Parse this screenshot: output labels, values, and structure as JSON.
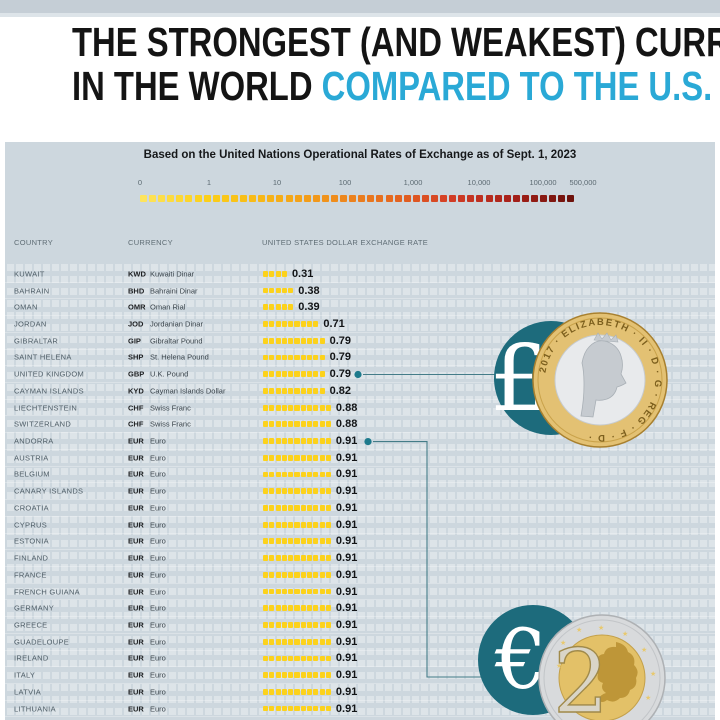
{
  "title": {
    "line1": "THE STRONGEST (AND WEAKEST) CURRENCIES",
    "line2_black": "IN THE WORLD",
    "line2_accent": "COMPARED TO THE U.S. DOLLAR",
    "accent_color": "#2aa9d6"
  },
  "subtitle": "Based on the United Nations Operational Rates of Exchange as of Sept. 1, 2023",
  "legend": {
    "ticks": [
      "0",
      "1",
      "10",
      "100",
      "1,000",
      "10,000",
      "100,000",
      "500,000"
    ],
    "square_count": 48,
    "gradient_stops": [
      "#fde45c",
      "#fbd01a",
      "#f7b516",
      "#f0921c",
      "#e66b1f",
      "#d43e26",
      "#a8211a",
      "#6e120c"
    ]
  },
  "table": {
    "headers": {
      "country": "COUNTRY",
      "currency": "CURRENCY",
      "rate": "UNITED STATES DOLLAR EXCHANGE RATE"
    }
  },
  "coins": {
    "pound": {
      "symbol": "£",
      "ring_text": "2017 · ELIZABETH · II · D · G · REG · F · D ·"
    },
    "euro": {
      "symbol": "€",
      "denomination": "2"
    }
  },
  "colors": {
    "background": "#cdd7de",
    "bar_yellow": "#fcd21b",
    "teal_circle": "#1d6b7c",
    "connector": "#447c88"
  },
  "chart_data": {
    "type": "bar",
    "orientation": "horizontal",
    "title": "The Strongest (and Weakest) Currencies in the World Compared to the U.S. Dollar",
    "subtitle": "Based on the United Nations Operational Rates of Exchange as of Sept. 1, 2023",
    "xlabel": "UNITED STATES DOLLAR EXCHANGE RATE",
    "scale": "log-style legend from 0 to 500,000",
    "legend_ticks": [
      0,
      1,
      10,
      100,
      1000,
      10000,
      100000,
      500000
    ],
    "categories": [
      "KUWAIT",
      "BAHRAIN",
      "OMAN",
      "JORDAN",
      "GIBRALTAR",
      "SAINT HELENA",
      "UNITED KINGDOM",
      "CAYMAN ISLANDS",
      "LIECHTENSTEIN",
      "SWITZERLAND",
      "ANDORRA",
      "AUSTRIA",
      "BELGIUM",
      "CANARY ISLANDS",
      "CROATIA",
      "CYPRUS",
      "ESTONIA",
      "FINLAND",
      "FRANCE",
      "FRENCH GUIANA",
      "GERMANY",
      "GREECE",
      "GUADELOUPE",
      "IRELAND",
      "ITALY",
      "LATVIA",
      "LITHUANIA"
    ],
    "codes": [
      "KWD",
      "BHD",
      "OMR",
      "JOD",
      "GIP",
      "SHP",
      "GBP",
      "KYD",
      "CHF",
      "CHF",
      "EUR",
      "EUR",
      "EUR",
      "EUR",
      "EUR",
      "EUR",
      "EUR",
      "EUR",
      "EUR",
      "EUR",
      "EUR",
      "EUR",
      "EUR",
      "EUR",
      "EUR",
      "EUR",
      "EUR"
    ],
    "currency_names": [
      "Kuwaiti Dinar",
      "Bahraini Dinar",
      "Oman Rial",
      "Jordanian Dinar",
      "Gibraltar Pound",
      "St. Helena Pound",
      "U.K. Pound",
      "Cayman Islands Dollar",
      "Swiss Franc",
      "Swiss Franc",
      "Euro",
      "Euro",
      "Euro",
      "Euro",
      "Euro",
      "Euro",
      "Euro",
      "Euro",
      "Euro",
      "Euro",
      "Euro",
      "Euro",
      "Euro",
      "Euro",
      "Euro",
      "Euro",
      "Euro"
    ],
    "values": [
      0.31,
      0.38,
      0.39,
      0.71,
      0.79,
      0.79,
      0.79,
      0.82,
      0.88,
      0.88,
      0.91,
      0.91,
      0.91,
      0.91,
      0.91,
      0.91,
      0.91,
      0.91,
      0.91,
      0.91,
      0.91,
      0.91,
      0.91,
      0.91,
      0.91,
      0.91,
      0.91
    ],
    "highlighted": [
      "UNITED KINGDOM",
      "ANDORRA"
    ]
  }
}
